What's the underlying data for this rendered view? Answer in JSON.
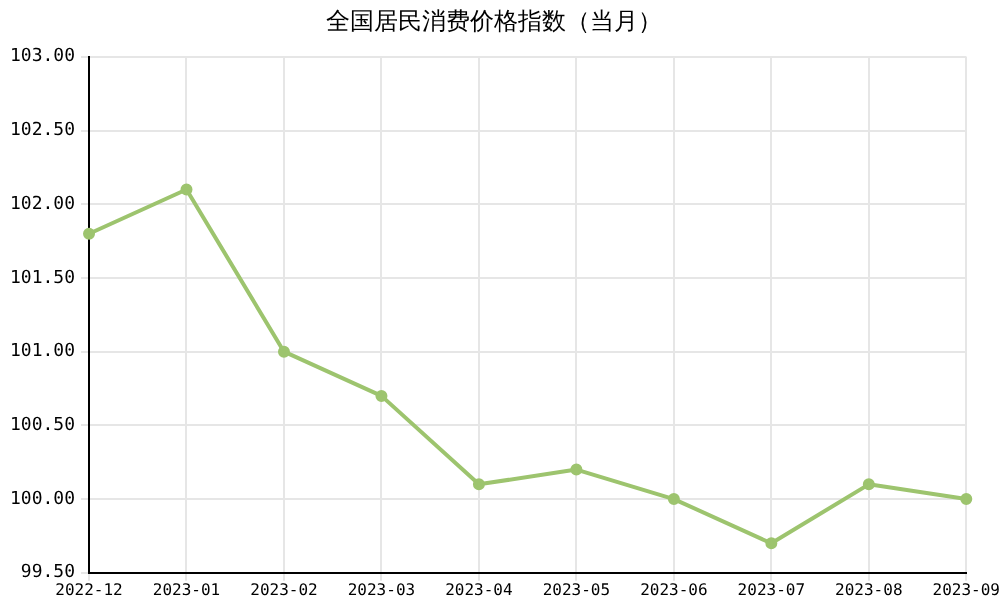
{
  "chart_data": {
    "type": "line",
    "title": "全国居民消费价格指数（当月）",
    "categories": [
      "2022-12",
      "2023-01",
      "2023-02",
      "2023-03",
      "2023-04",
      "2023-05",
      "2023-06",
      "2023-07",
      "2023-08",
      "2023-09"
    ],
    "series": [
      {
        "color": "#9dc46e",
        "values": [
          101.8,
          102.1,
          101.0,
          100.7,
          100.1,
          100.2,
          100.0,
          99.7,
          100.1,
          100.0
        ]
      }
    ],
    "ylim": [
      99.5,
      103
    ],
    "yticks": [
      {
        "value": 99.5,
        "label": "99.50"
      },
      {
        "value": 100,
        "label": "100.00"
      },
      {
        "value": 100.5,
        "label": "100.50"
      },
      {
        "value": 101,
        "label": "101.00"
      },
      {
        "value": 101.5,
        "label": "101.50"
      },
      {
        "value": 102,
        "label": "102.00"
      },
      {
        "value": 102.5,
        "label": "102.50"
      },
      {
        "value": 103,
        "label": "103.00"
      }
    ],
    "grid": true,
    "legend": false,
    "marker": "circle",
    "line_style": "solid"
  }
}
